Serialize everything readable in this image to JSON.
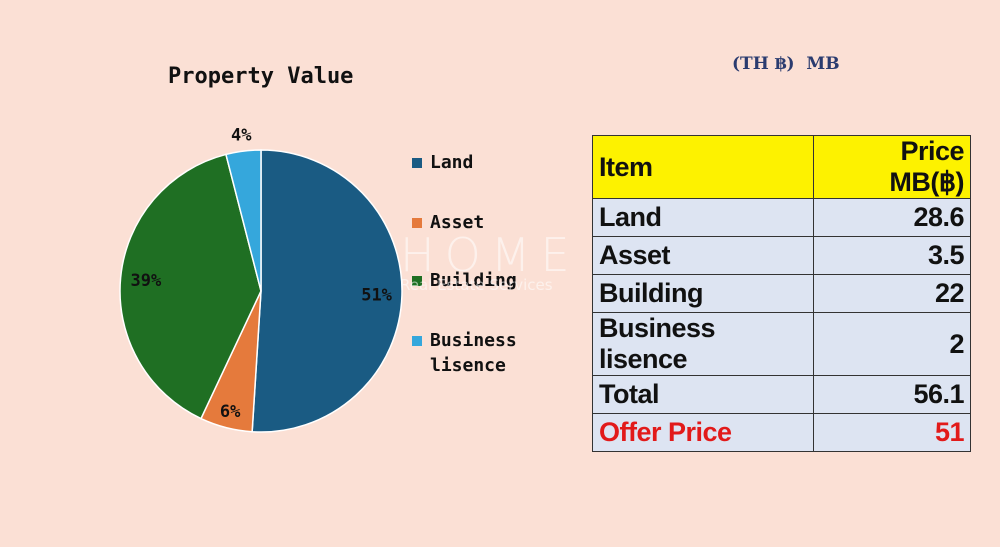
{
  "title": "Property Value",
  "currency_note": "(TH ฿)  MB",
  "watermark": {
    "main": "HOME",
    "sub": "Real Estate Services"
  },
  "colors": {
    "land": "#1a5b83",
    "asset": "#e57a3c",
    "building": "#1f6f23",
    "business": "#35a7dc",
    "table_header": "#fdf200",
    "table_cell": "#dde4f2",
    "offer": "#e21a1a"
  },
  "chart_data": {
    "type": "pie",
    "title": "Property Value",
    "labels": [
      "Land",
      "Asset",
      "Building",
      "Business lisence"
    ],
    "values": [
      51,
      6,
      39,
      4
    ],
    "value_labels": [
      "51%",
      "6%",
      "39%",
      "4%"
    ],
    "colors": [
      "#1a5b83",
      "#e57a3c",
      "#1f6f23",
      "#35a7dc"
    ],
    "legend_position": "right"
  },
  "legend": [
    {
      "label": "Land",
      "color": "#1a5b83"
    },
    {
      "label": "Asset",
      "color": "#e57a3c"
    },
    {
      "label": "Building",
      "color": "#1f6f23"
    },
    {
      "label": "Business\nlisence",
      "color": "#35a7dc"
    }
  ],
  "table": {
    "headers": [
      "Item",
      "Price MB(฿)"
    ],
    "rows": [
      {
        "item": "Land",
        "price": "28.6"
      },
      {
        "item": "Asset",
        "price": "3.5"
      },
      {
        "item": "Building",
        "price": "22"
      },
      {
        "item": "Business lisence",
        "price": "2"
      },
      {
        "item": "Total",
        "price": "56.1"
      },
      {
        "item": "Offer Price",
        "price": "51"
      }
    ]
  }
}
